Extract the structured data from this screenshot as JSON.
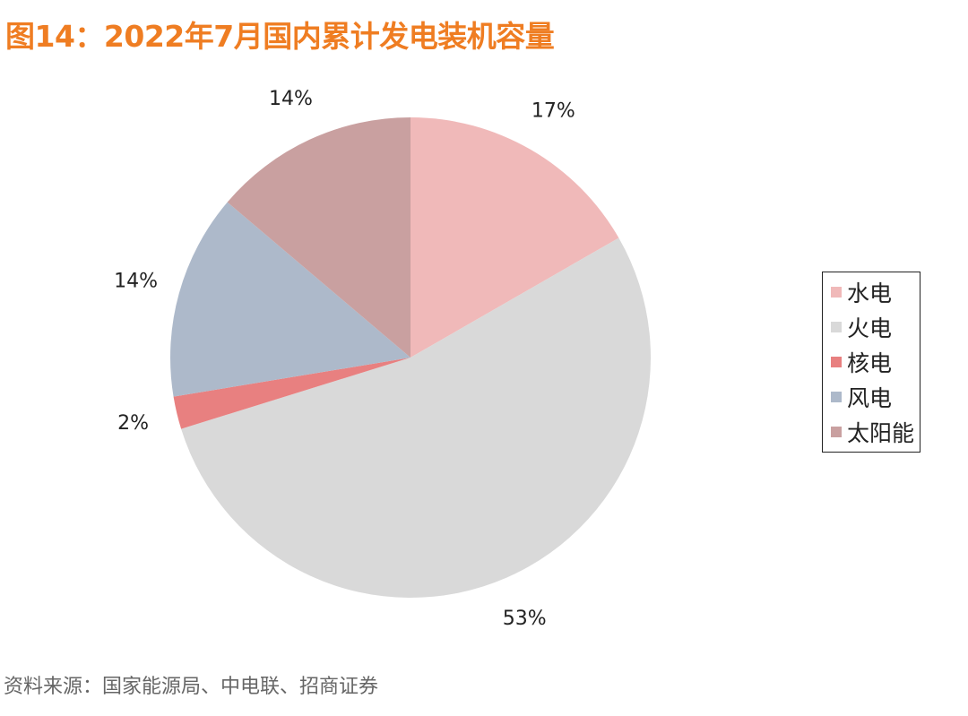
{
  "title": "图14：2022年7月国内累计发电装机容量",
  "source": "资料来源：国家能源局、中电联、招商证券",
  "chart_data": {
    "type": "pie",
    "title": "图14：2022年7月国内累计发电装机容量",
    "legend_position": "right",
    "start": "12 o'clock, clockwise",
    "slices": [
      {
        "name": "水电",
        "value": 16.7,
        "label": "17%",
        "color": "#f0b9b9"
      },
      {
        "name": "火电",
        "value": 53.5,
        "label": "53%",
        "color": "#d9d9d9"
      },
      {
        "name": "核电",
        "value": 2.2,
        "label": "2%",
        "color": "#e88080"
      },
      {
        "name": "风电",
        "value": 13.8,
        "label": "14%",
        "color": "#adb9ca"
      },
      {
        "name": "太阳能",
        "value": 13.8,
        "label": "14%",
        "color": "#c9a0a0"
      }
    ]
  }
}
